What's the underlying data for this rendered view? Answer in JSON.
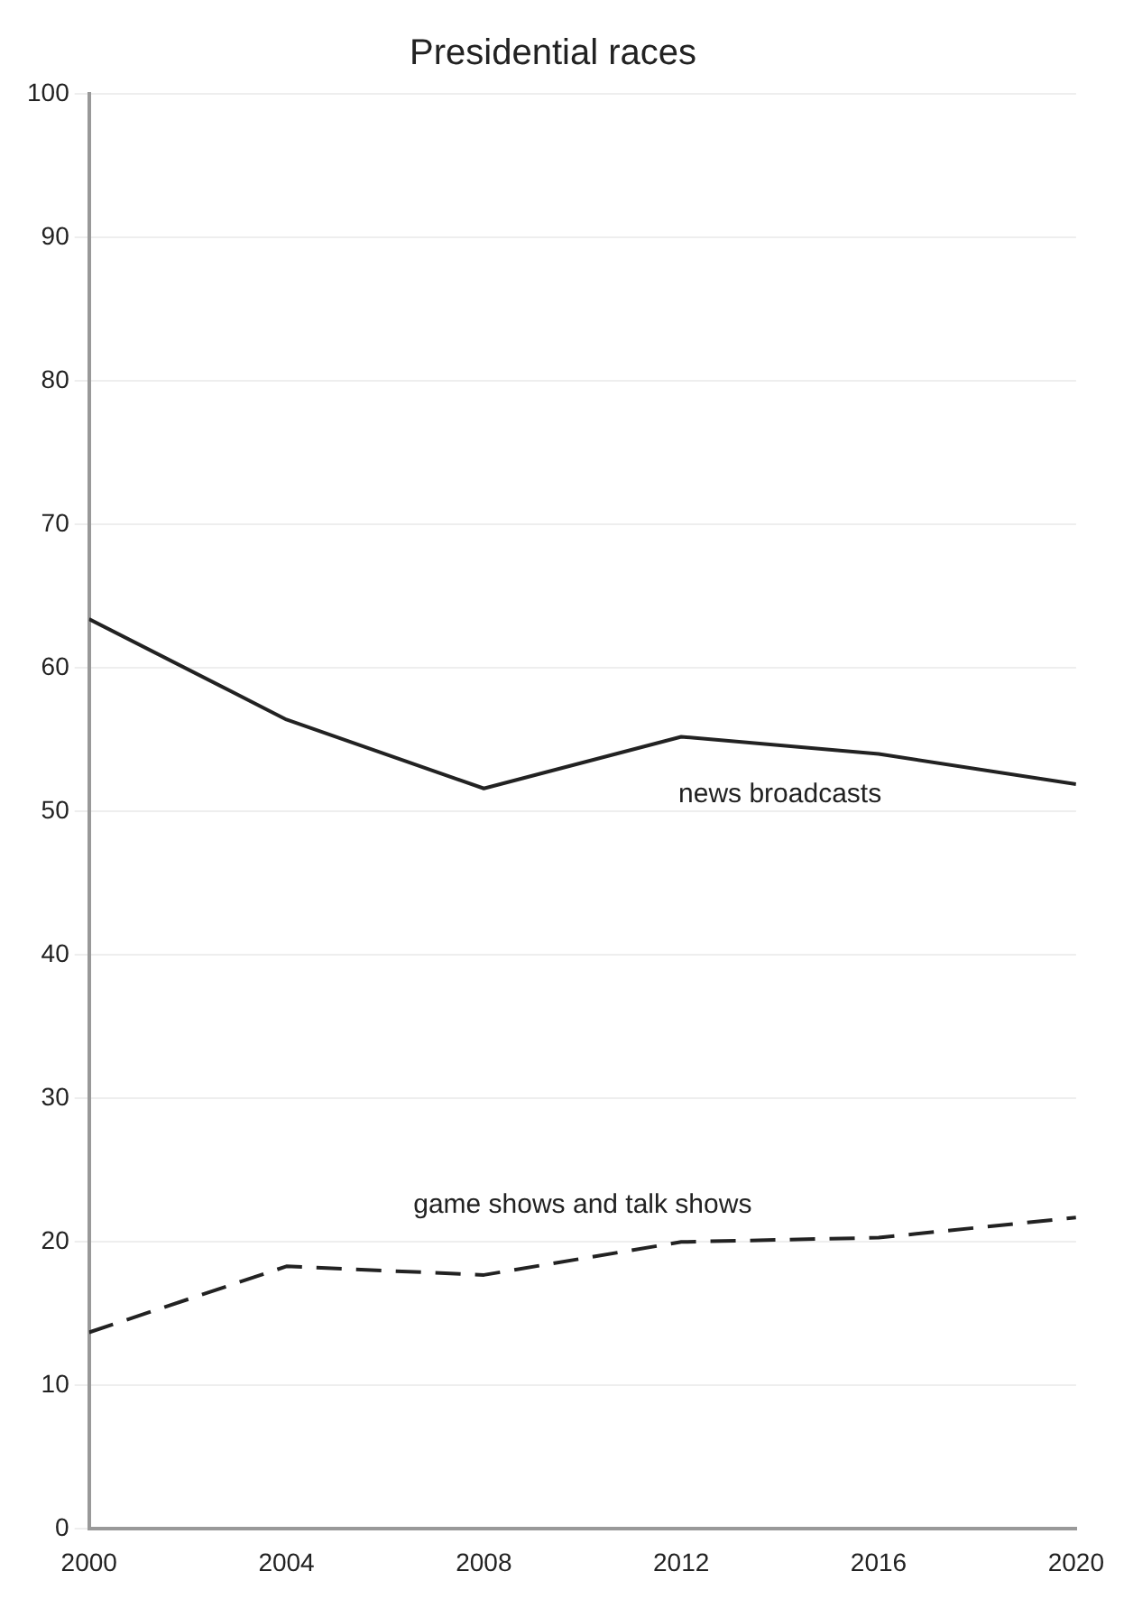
{
  "chart_data": {
    "type": "line",
    "title": "Presidential races",
    "x": [
      2000,
      2004,
      2008,
      2012,
      2016,
      2020
    ],
    "series": [
      {
        "name": "news broadcasts",
        "color": "#222222",
        "line_style": "solid",
        "values": [
          63.4,
          56.4,
          51.6,
          55.2,
          54.0,
          51.9
        ]
      },
      {
        "name": "game shows and talk shows",
        "color": "#222222",
        "line_style": "dashed",
        "values": [
          13.7,
          18.3,
          17.7,
          20.0,
          20.3,
          21.7
        ]
      }
    ],
    "xlim": [
      2000,
      2020
    ],
    "xticks": [
      2000,
      2004,
      2008,
      2012,
      2016,
      2020
    ],
    "ylim": [
      0,
      100
    ],
    "yticks": [
      0,
      10,
      20,
      30,
      40,
      50,
      60,
      70,
      80,
      90,
      100
    ],
    "grid": "y",
    "legend": false,
    "marker": "none"
  }
}
